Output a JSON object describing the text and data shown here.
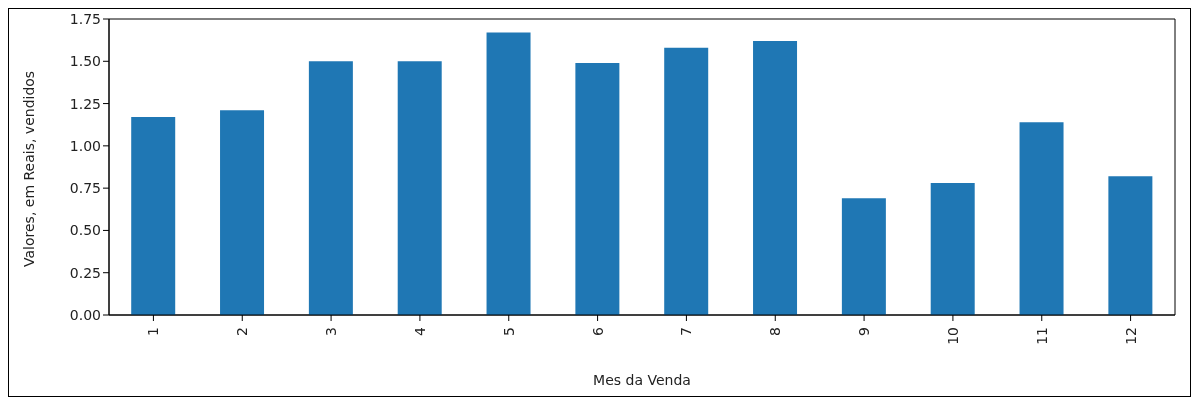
{
  "chart_data": {
    "type": "bar",
    "xlabel": "Mes da Venda",
    "ylabel": "Valores, em Reais, vendidos",
    "categories": [
      "1",
      "2",
      "3",
      "4",
      "5",
      "6",
      "7",
      "8",
      "9",
      "10",
      "11",
      "12"
    ],
    "values": [
      1.17,
      1.21,
      1.5,
      1.5,
      1.67,
      1.49,
      1.58,
      1.62,
      0.69,
      0.78,
      1.14,
      0.82
    ],
    "color": "#1f77b4",
    "ylim": [
      0,
      1.75
    ],
    "yticks": [
      {
        "value": 0,
        "label": "0.00"
      },
      {
        "value": 0.25,
        "label": "0.25"
      },
      {
        "value": 0.5,
        "label": "0.50"
      },
      {
        "value": 0.75,
        "label": "0.75"
      },
      {
        "value": 1,
        "label": "1.00"
      },
      {
        "value": 1.25,
        "label": "1.25"
      },
      {
        "value": 1.5,
        "label": "1.50"
      },
      {
        "value": 1.75,
        "label": "1.75"
      }
    ],
    "grid": false,
    "legend": false
  }
}
